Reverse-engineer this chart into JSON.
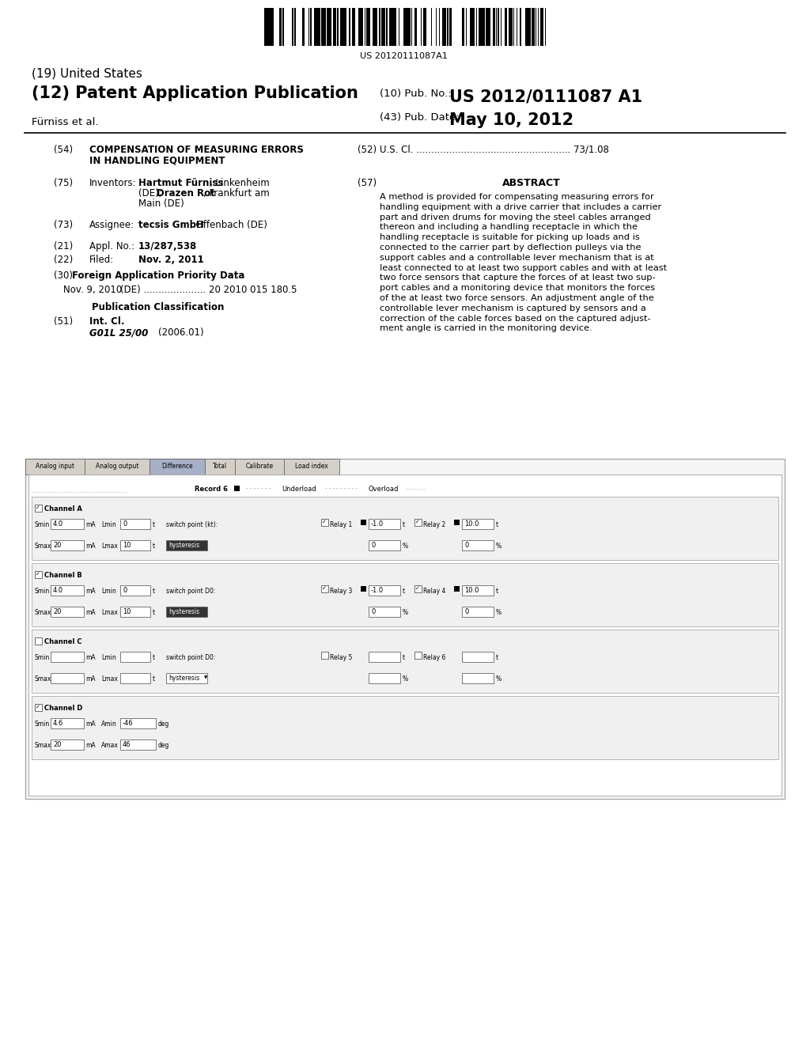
{
  "bg_color": "#ffffff",
  "barcode_text": "US 20120111087A1",
  "title_19": "(19) United States",
  "title_12": "(12) Patent Application Publication",
  "pub_no_label": "(10) Pub. No.:",
  "pub_no_value": "US 2012/0111087 A1",
  "inventor_label": "Fürniss et al.",
  "pub_date_label": "(43) Pub. Date:",
  "pub_date_value": "May 10, 2012",
  "field54_label": "(54)",
  "field52_label": "(52)",
  "field52_text": "U.S. Cl. .................................................... 73/1.08",
  "field75_label": "(75)",
  "field57_label": "(57)",
  "field57_title": "ABSTRACT",
  "abstract_lines": [
    "A method is provided for compensating measuring errors for",
    "handling equipment with a drive carrier that includes a carrier",
    "part and driven drums for moving the steel cables arranged",
    "thereon and including a handling receptacle in which the",
    "handling receptacle is suitable for picking up loads and is",
    "connected to the carrier part by deflection pulleys via the",
    "support cables and a controllable lever mechanism that is at",
    "least connected to at least two support cables and with at least",
    "two force sensors that capture the forces of at least two sup-",
    "port cables and a monitoring device that monitors the forces",
    "of the at least two force sensors. An adjustment angle of the",
    "controllable lever mechanism is captured by sensors and a",
    "correction of the cable forces based on the captured adjust-",
    "ment angle is carried in the monitoring device."
  ],
  "field73_label": "(73)",
  "field21_label": "(21)",
  "field21_val": "13/287,538",
  "field22_label": "(22)",
  "field22_val": "Nov. 2, 2011",
  "field30_label": "(30)",
  "field51_label": "(51)",
  "field51_val1": "G01L 25/00",
  "field51_val2": "(2006.01)",
  "diagram_tabs": [
    "Analog input",
    "Analog output",
    "Difference",
    "Total",
    "Calibrate",
    "Load index"
  ],
  "tab_active": 2,
  "diagram_record": "Record 6",
  "diagram_underload": "Underload",
  "diagram_overload": "Overload"
}
